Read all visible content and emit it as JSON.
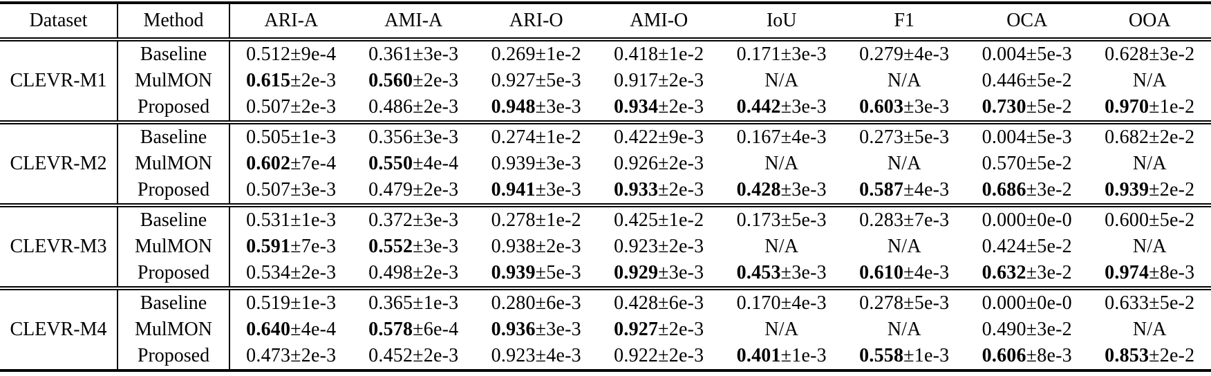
{
  "table": {
    "plus_minus": "±",
    "na_label": "N/A",
    "headers": [
      "Dataset",
      "Method",
      "ARI-A",
      "AMI-A",
      "ARI-O",
      "AMI-O",
      "IoU",
      "F1",
      "OCA",
      "OOA"
    ],
    "groups": [
      {
        "dataset": "CLEVR-M1",
        "rows": [
          {
            "method": "Baseline",
            "cells": [
              {
                "val": "0.512",
                "err": "9e-4",
                "bold": false
              },
              {
                "val": "0.361",
                "err": "3e-3",
                "bold": false
              },
              {
                "val": "0.269",
                "err": "1e-2",
                "bold": false
              },
              {
                "val": "0.418",
                "err": "1e-2",
                "bold": false
              },
              {
                "val": "0.171",
                "err": "3e-3",
                "bold": false
              },
              {
                "val": "0.279",
                "err": "4e-3",
                "bold": false
              },
              {
                "val": "0.004",
                "err": "5e-3",
                "bold": false
              },
              {
                "val": "0.628",
                "err": "3e-2",
                "bold": false
              }
            ]
          },
          {
            "method": "MulMON",
            "cells": [
              {
                "val": "0.615",
                "err": "2e-3",
                "bold": true
              },
              {
                "val": "0.560",
                "err": "2e-3",
                "bold": true
              },
              {
                "val": "0.927",
                "err": "5e-3",
                "bold": false
              },
              {
                "val": "0.917",
                "err": "2e-3",
                "bold": false
              },
              {
                "na": true
              },
              {
                "na": true
              },
              {
                "val": "0.446",
                "err": "5e-2",
                "bold": false
              },
              {
                "na": true
              }
            ]
          },
          {
            "method": "Proposed",
            "cells": [
              {
                "val": "0.507",
                "err": "2e-3",
                "bold": false
              },
              {
                "val": "0.486",
                "err": "2e-3",
                "bold": false
              },
              {
                "val": "0.948",
                "err": "3e-3",
                "bold": true
              },
              {
                "val": "0.934",
                "err": "2e-3",
                "bold": true
              },
              {
                "val": "0.442",
                "err": "3e-3",
                "bold": true
              },
              {
                "val": "0.603",
                "err": "3e-3",
                "bold": true
              },
              {
                "val": "0.730",
                "err": "5e-2",
                "bold": true
              },
              {
                "val": "0.970",
                "err": "1e-2",
                "bold": true
              }
            ]
          }
        ]
      },
      {
        "dataset": "CLEVR-M2",
        "rows": [
          {
            "method": "Baseline",
            "cells": [
              {
                "val": "0.505",
                "err": "1e-3",
                "bold": false
              },
              {
                "val": "0.356",
                "err": "3e-3",
                "bold": false
              },
              {
                "val": "0.274",
                "err": "1e-2",
                "bold": false
              },
              {
                "val": "0.422",
                "err": "9e-3",
                "bold": false
              },
              {
                "val": "0.167",
                "err": "4e-3",
                "bold": false
              },
              {
                "val": "0.273",
                "err": "5e-3",
                "bold": false
              },
              {
                "val": "0.004",
                "err": "5e-3",
                "bold": false
              },
              {
                "val": "0.682",
                "err": "2e-2",
                "bold": false
              }
            ]
          },
          {
            "method": "MulMON",
            "cells": [
              {
                "val": "0.602",
                "err": "7e-4",
                "bold": true
              },
              {
                "val": "0.550",
                "err": "4e-4",
                "bold": true
              },
              {
                "val": "0.939",
                "err": "3e-3",
                "bold": false
              },
              {
                "val": "0.926",
                "err": "2e-3",
                "bold": false
              },
              {
                "na": true
              },
              {
                "na": true
              },
              {
                "val": "0.570",
                "err": "5e-2",
                "bold": false
              },
              {
                "na": true
              }
            ]
          },
          {
            "method": "Proposed",
            "cells": [
              {
                "val": "0.507",
                "err": "3e-3",
                "bold": false
              },
              {
                "val": "0.479",
                "err": "2e-3",
                "bold": false
              },
              {
                "val": "0.941",
                "err": "3e-3",
                "bold": true
              },
              {
                "val": "0.933",
                "err": "2e-3",
                "bold": true
              },
              {
                "val": "0.428",
                "err": "3e-3",
                "bold": true
              },
              {
                "val": "0.587",
                "err": "4e-3",
                "bold": true
              },
              {
                "val": "0.686",
                "err": "3e-2",
                "bold": true
              },
              {
                "val": "0.939",
                "err": "2e-2",
                "bold": true
              }
            ]
          }
        ]
      },
      {
        "dataset": "CLEVR-M3",
        "rows": [
          {
            "method": "Baseline",
            "cells": [
              {
                "val": "0.531",
                "err": "1e-3",
                "bold": false
              },
              {
                "val": "0.372",
                "err": "3e-3",
                "bold": false
              },
              {
                "val": "0.278",
                "err": "1e-2",
                "bold": false
              },
              {
                "val": "0.425",
                "err": "1e-2",
                "bold": false
              },
              {
                "val": "0.173",
                "err": "5e-3",
                "bold": false
              },
              {
                "val": "0.283",
                "err": "7e-3",
                "bold": false
              },
              {
                "val": "0.000",
                "err": "0e-0",
                "bold": false
              },
              {
                "val": "0.600",
                "err": "5e-2",
                "bold": false
              }
            ]
          },
          {
            "method": "MulMON",
            "cells": [
              {
                "val": "0.591",
                "err": "7e-3",
                "bold": true
              },
              {
                "val": "0.552",
                "err": "3e-3",
                "bold": true
              },
              {
                "val": "0.938",
                "err": "2e-3",
                "bold": false
              },
              {
                "val": "0.923",
                "err": "2e-3",
                "bold": false
              },
              {
                "na": true
              },
              {
                "na": true
              },
              {
                "val": "0.424",
                "err": "5e-2",
                "bold": false
              },
              {
                "na": true
              }
            ]
          },
          {
            "method": "Proposed",
            "cells": [
              {
                "val": "0.534",
                "err": "2e-3",
                "bold": false
              },
              {
                "val": "0.498",
                "err": "2e-3",
                "bold": false
              },
              {
                "val": "0.939",
                "err": "5e-3",
                "bold": true
              },
              {
                "val": "0.929",
                "err": "3e-3",
                "bold": true
              },
              {
                "val": "0.453",
                "err": "3e-3",
                "bold": true
              },
              {
                "val": "0.610",
                "err": "4e-3",
                "bold": true
              },
              {
                "val": "0.632",
                "err": "3e-2",
                "bold": true
              },
              {
                "val": "0.974",
                "err": "8e-3",
                "bold": true
              }
            ]
          }
        ]
      },
      {
        "dataset": "CLEVR-M4",
        "rows": [
          {
            "method": "Baseline",
            "cells": [
              {
                "val": "0.519",
                "err": "1e-3",
                "bold": false
              },
              {
                "val": "0.365",
                "err": "1e-3",
                "bold": false
              },
              {
                "val": "0.280",
                "err": "6e-3",
                "bold": false
              },
              {
                "val": "0.428",
                "err": "6e-3",
                "bold": false
              },
              {
                "val": "0.170",
                "err": "4e-3",
                "bold": false
              },
              {
                "val": "0.278",
                "err": "5e-3",
                "bold": false
              },
              {
                "val": "0.000",
                "err": "0e-0",
                "bold": false
              },
              {
                "val": "0.633",
                "err": "5e-2",
                "bold": false
              }
            ]
          },
          {
            "method": "MulMON",
            "cells": [
              {
                "val": "0.640",
                "err": "4e-4",
                "bold": true
              },
              {
                "val": "0.578",
                "err": "6e-4",
                "bold": true
              },
              {
                "val": "0.936",
                "err": "3e-3",
                "bold": true
              },
              {
                "val": "0.927",
                "err": "2e-3",
                "bold": true
              },
              {
                "na": true
              },
              {
                "na": true
              },
              {
                "val": "0.490",
                "err": "3e-2",
                "bold": false
              },
              {
                "na": true
              }
            ]
          },
          {
            "method": "Proposed",
            "cells": [
              {
                "val": "0.473",
                "err": "2e-3",
                "bold": false
              },
              {
                "val": "0.452",
                "err": "2e-3",
                "bold": false
              },
              {
                "val": "0.923",
                "err": "4e-3",
                "bold": false
              },
              {
                "val": "0.922",
                "err": "2e-3",
                "bold": false
              },
              {
                "val": "0.401",
                "err": "1e-3",
                "bold": true
              },
              {
                "val": "0.558",
                "err": "1e-3",
                "bold": true
              },
              {
                "val": "0.606",
                "err": "8e-3",
                "bold": true
              },
              {
                "val": "0.853",
                "err": "2e-2",
                "bold": true
              }
            ]
          }
        ]
      }
    ]
  }
}
